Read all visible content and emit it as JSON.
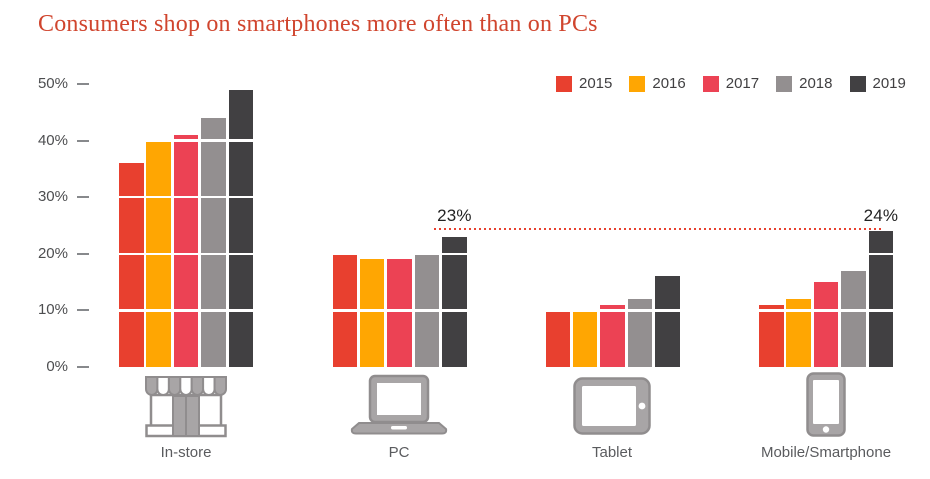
{
  "title": "Consumers shop on smartphones more often than on PCs",
  "legend": [
    {
      "label": "2015",
      "color": "#e8402f"
    },
    {
      "label": "2016",
      "color": "#ffa602"
    },
    {
      "label": "2017",
      "color": "#ec4254"
    },
    {
      "label": "2018",
      "color": "#938f90"
    },
    {
      "label": "2019",
      "color": "#414042"
    }
  ],
  "chart_data": {
    "type": "bar",
    "title": "Consumers shop on smartphones more often than on PCs",
    "categories": [
      "In-store",
      "PC",
      "Tablet",
      "Mobile/Smartphone"
    ],
    "series": [
      {
        "name": "2015",
        "color": "#e8402f",
        "values": [
          36,
          20,
          10,
          11
        ]
      },
      {
        "name": "2016",
        "color": "#ffa602",
        "values": [
          40,
          19,
          10,
          12
        ]
      },
      {
        "name": "2017",
        "color": "#ec4254",
        "values": [
          41,
          19,
          11,
          15
        ]
      },
      {
        "name": "2018",
        "color": "#938f90",
        "values": [
          44,
          20,
          12,
          17
        ]
      },
      {
        "name": "2019",
        "color": "#414042",
        "values": [
          49,
          23,
          16,
          24
        ]
      }
    ],
    "xlabel": "",
    "ylabel": "",
    "ylim": [
      0,
      50
    ],
    "y_ticks": [
      "50%",
      "40%",
      "30%",
      "20%",
      "10%",
      "0%"
    ],
    "grid": "white horizontal lines every 10% drawn across bars",
    "legend_position": "top-right",
    "annotations": [
      {
        "text": "23%",
        "category": "PC",
        "series": "2019",
        "value": 23
      },
      {
        "text": "24%",
        "category": "Mobile/Smartphone",
        "series": "2019",
        "value": 24
      }
    ],
    "annotation_line": {
      "style": "dotted",
      "color": "#e8402f",
      "from_category": "PC",
      "to_category": "Mobile/Smartphone",
      "level_percent": 24
    }
  },
  "x_axis": {
    "items": [
      {
        "label": "In-store",
        "icon": "storefront-icon"
      },
      {
        "label": "PC",
        "icon": "laptop-icon"
      },
      {
        "label": "Tablet",
        "icon": "tablet-icon"
      },
      {
        "label": "Mobile/Smartphone",
        "icon": "smartphone-icon"
      }
    ]
  },
  "colors": {
    "title": "#d0452e",
    "axis_text": "#4d4e50",
    "x_label_text": "#5a5b5e",
    "annotation_text": "#232323",
    "icon_fill": "#a8a5a6",
    "icon_stroke": "#908d8e"
  }
}
